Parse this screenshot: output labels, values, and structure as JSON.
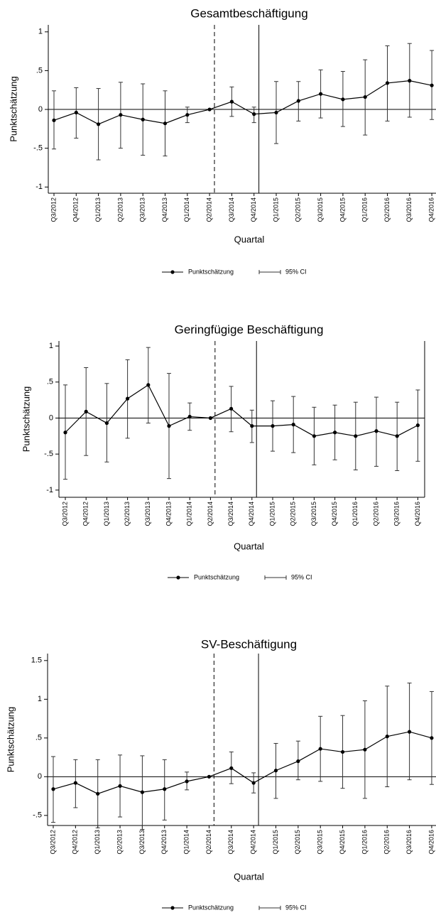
{
  "chart_data": [
    {
      "type": "errorline",
      "title": "Gesamtbeschäftigung",
      "ylabel": "Punktschätzung",
      "xlabel": "Quartal",
      "categories": [
        "Q3/2012",
        "Q4/2012",
        "Q1/2013",
        "Q2/2013",
        "Q3/2013",
        "Q4/2013",
        "Q1/2014",
        "Q2/2014",
        "Q3/2014",
        "Q4/2014",
        "Q1/2015",
        "Q2/2015",
        "Q3/2015",
        "Q4/2015",
        "Q1/2016",
        "Q2/2016",
        "Q3/2016",
        "Q4/2016"
      ],
      "series": [
        {
          "name": "Punktschätzung",
          "color": "#000000",
          "values": [
            -0.14,
            -0.04,
            -0.19,
            -0.07,
            -0.13,
            -0.18,
            -0.07,
            0,
            0.1,
            -0.06,
            -0.04,
            0.11,
            0.2,
            0.13,
            0.16,
            0.34,
            0.37,
            0.31
          ]
        }
      ],
      "ci": {
        "name": "95% CI",
        "upper": [
          0.24,
          0.28,
          0.27,
          0.35,
          0.33,
          0.24,
          0.03,
          null,
          0.29,
          0.03,
          0.36,
          0.36,
          0.51,
          0.49,
          0.64,
          0.82,
          0.85,
          0.76
        ],
        "lower": [
          -0.51,
          -0.37,
          -0.65,
          -0.5,
          -0.59,
          -0.6,
          -0.17,
          null,
          -0.09,
          -0.17,
          -0.44,
          -0.15,
          -0.11,
          -0.22,
          -0.33,
          -0.15,
          -0.1,
          -0.13
        ]
      },
      "ylim": [
        -1.08,
        1.09
      ],
      "yticks": [
        {
          "value": -1,
          "label": "-1"
        },
        {
          "value": -0.5,
          "label": "-.5"
        },
        0,
        {
          "value": 0.5,
          "label": ".5"
        },
        1
      ]
    },
    {
      "type": "errorline",
      "title": "Geringfügige Beschäftigung",
      "ylabel": "Punktschätzung",
      "xlabel": "Quartal",
      "categories": [
        "Q3/2012",
        "Q4/2012",
        "Q1/2013",
        "Q2/2013",
        "Q3/2013",
        "Q4/2013",
        "Q1/2014",
        "Q2/2014",
        "Q3/2014",
        "Q4/2014",
        "Q1/2015",
        "Q2/2015",
        "Q3/2015",
        "Q4/2015",
        "Q1/2016",
        "Q2/2016",
        "Q3/2016",
        "Q4/2016"
      ],
      "series": [
        {
          "name": "Punktschätzung",
          "color": "#000000",
          "values": [
            -0.2,
            0.09,
            -0.07,
            0.27,
            0.46,
            -0.11,
            0.02,
            0,
            0.13,
            -0.11,
            -0.11,
            -0.09,
            -0.25,
            -0.2,
            -0.25,
            -0.18,
            -0.25,
            -0.1
          ]
        }
      ],
      "ci": {
        "name": "95% CI",
        "upper": [
          0.46,
          0.7,
          0.48,
          0.81,
          0.98,
          0.62,
          0.21,
          null,
          0.44,
          0.11,
          0.24,
          0.3,
          0.15,
          0.18,
          0.22,
          0.29,
          0.22,
          0.39
        ],
        "lower": [
          -0.85,
          -0.52,
          -0.61,
          -0.28,
          -0.07,
          -0.84,
          -0.17,
          null,
          -0.19,
          -0.34,
          -0.46,
          -0.48,
          -0.65,
          -0.58,
          -0.72,
          -0.67,
          -0.73,
          -0.6
        ]
      },
      "ylim": [
        -1.1,
        1.07
      ],
      "yticks": [
        {
          "value": -1,
          "label": "-1"
        },
        {
          "value": -0.5,
          "label": "-.5"
        },
        0,
        {
          "value": 0.5,
          "label": ".5"
        },
        1
      ]
    },
    {
      "type": "errorline",
      "title": "SV-Beschäftigung",
      "ylabel": "Punktschätzung",
      "xlabel": "Quartal",
      "categories": [
        "Q3/2012",
        "Q4/2012",
        "Q1/2013",
        "Q2/2013",
        "Q3/2013",
        "Q4/2013",
        "Q1/2014",
        "Q2/2014",
        "Q3/2014",
        "Q4/2014",
        "Q1/2015",
        "Q2/2015",
        "Q3/2015",
        "Q4/2015",
        "Q1/2016",
        "Q2/2016",
        "Q3/2016",
        "Q4/2016"
      ],
      "series": [
        {
          "name": "Punktschätzung",
          "color": "#000000",
          "values": [
            -0.16,
            -0.08,
            -0.22,
            -0.12,
            -0.2,
            -0.16,
            -0.06,
            0,
            0.11,
            -0.08,
            0.08,
            0.2,
            0.36,
            0.32,
            0.35,
            0.52,
            0.58,
            0.5
          ]
        }
      ],
      "ci": {
        "name": "95% CI",
        "upper": [
          0.26,
          0.22,
          0.22,
          0.28,
          0.27,
          0.22,
          0.06,
          null,
          0.32,
          0.05,
          0.43,
          0.46,
          0.78,
          0.79,
          0.98,
          1.17,
          1.21,
          1.1
        ],
        "lower": [
          -0.59,
          -0.4,
          -0.66,
          -0.52,
          -0.68,
          -0.56,
          -0.17,
          null,
          -0.09,
          -0.21,
          -0.28,
          -0.04,
          -0.06,
          -0.15,
          -0.28,
          -0.13,
          -0.04,
          -0.1
        ]
      },
      "ylim": [
        -0.63,
        1.59
      ],
      "yticks": [
        {
          "value": -0.5,
          "label": "-.5"
        },
        0,
        {
          "value": 0.5,
          "label": ".5"
        },
        1,
        1.5
      ]
    }
  ]
}
